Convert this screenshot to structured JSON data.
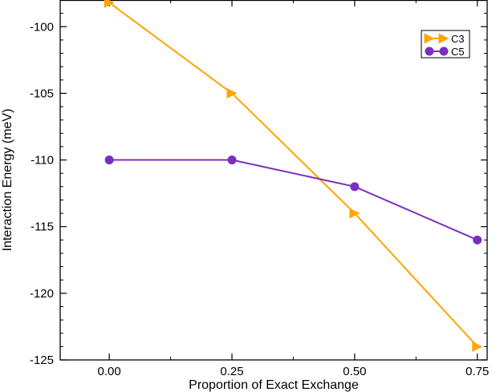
{
  "chart_data": {
    "type": "line",
    "title": "",
    "xlabel": "Proportion of Exact Exchange",
    "ylabel": "Interaction Energy (meV)",
    "xlim": [
      -0.1,
      0.77
    ],
    "ylim": [
      -125,
      -98
    ],
    "x_ticks": [
      0.0,
      0.25,
      0.5,
      0.75
    ],
    "x_tick_labels": [
      "0.00",
      "0.25",
      "0.50",
      "0.75"
    ],
    "y_ticks": [
      -125,
      -120,
      -115,
      -110,
      -105,
      -100
    ],
    "y_tick_labels": [
      "-125",
      "-120",
      "-115",
      "-110",
      "-105",
      "-100"
    ],
    "grid": false,
    "legend_position": "top-right",
    "x": [
      0.0,
      0.25,
      0.5,
      0.75
    ],
    "series": [
      {
        "name": "C3",
        "values": [
          -98.2,
          -105.0,
          -114.0,
          -124.0
        ],
        "color": "#ffa500",
        "marker": "triangle-right"
      },
      {
        "name": "C5",
        "values": [
          -110.0,
          -110.0,
          -112.0,
          -116.0
        ],
        "color": "#7b2fbe",
        "marker": "circle"
      }
    ]
  }
}
